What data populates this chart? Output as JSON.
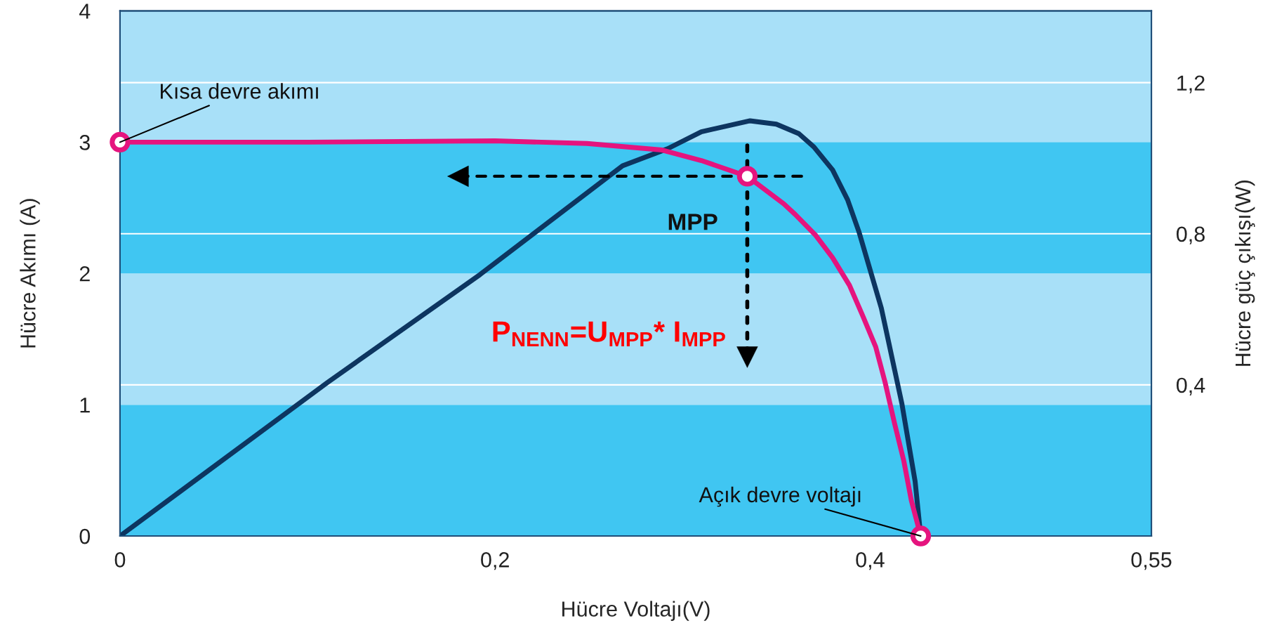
{
  "chart_data": {
    "type": "line",
    "xlabel": "Hücre Voltajı(V)",
    "ylabel": "Hücre Akımı (A)",
    "y2label": "Hücre güç çıkışı(W)",
    "series": [
      {
        "color": "#e5147e",
        "x": [
          0,
          0.1,
          0.2,
          0.249,
          0.289,
          0.31,
          0.3345,
          0.354,
          0.36,
          0.371,
          0.38,
          0.389,
          0.396,
          0.403,
          0.408,
          0.413,
          0.418,
          0.422,
          0.427
        ],
        "values": [
          3.0,
          3.0,
          3.01,
          2.99,
          2.94,
          2.86,
          2.74,
          2.53,
          2.45,
          2.29,
          2.12,
          1.91,
          1.68,
          1.44,
          1.17,
          0.86,
          0.57,
          0.27,
          0
        ]
      },
      {
        "axis": "y2",
        "color": "#0d3560",
        "x": [
          0,
          0.1105,
          0.192,
          0.268,
          0.292,
          0.31,
          0.336,
          0.35,
          0.362,
          0.37,
          0.38,
          0.388,
          0.394,
          0.406,
          0.417,
          0.424,
          0.427
        ],
        "values": [
          0,
          0.406,
          0.692,
          0.98,
          1.025,
          1.07,
          1.099,
          1.09,
          1.065,
          1.03,
          0.969,
          0.89,
          0.806,
          0.603,
          0.349,
          0.145,
          0
        ]
      },
      {
        "type": "scatter",
        "color": "#e5147e",
        "marker": "circle",
        "x": [
          0,
          0.3345,
          0.427
        ],
        "values": [
          3.0,
          2.74,
          0
        ]
      }
    ],
    "xlim": [
      0,
      0.55
    ],
    "xticks": [
      {
        "value": 0,
        "label": "0"
      },
      {
        "value": 0.2,
        "label": "0,2"
      },
      {
        "value": 0.4,
        "label": "0,4"
      },
      {
        "value": 0.55,
        "label": "0,55"
      }
    ],
    "ylim": [
      0,
      4
    ],
    "yticks": [
      0,
      1,
      2,
      3,
      4
    ],
    "y2lim": [
      0,
      1.39
    ],
    "y2ticks": [
      {
        "value": 0.4,
        "label": "0,4"
      },
      {
        "value": 0.8,
        "label": "0,8"
      },
      {
        "value": 1.2,
        "label": "1,2"
      }
    ],
    "bands": [
      {
        "axis": "y",
        "from": 0,
        "to": 1,
        "color": "#40c6f2"
      },
      {
        "axis": "y",
        "from": 1,
        "to": 2,
        "color": "#a8e0f8"
      },
      {
        "axis": "y",
        "from": 2,
        "to": 3,
        "color": "#40c6f2"
      },
      {
        "axis": "y",
        "from": 3,
        "to": 4,
        "color": "#a8e0f8"
      }
    ],
    "ref_lines": [
      {
        "axis": "y2",
        "value": 0.4,
        "color": "#ffffff"
      },
      {
        "axis": "y2",
        "value": 0.8,
        "color": "#ffffff"
      },
      {
        "axis": "y2",
        "value": 1.2,
        "color": "#ffffff"
      }
    ],
    "annotations": [
      {
        "text": "Kısa devre akımı",
        "x": 0,
        "y": 3.0
      },
      {
        "text": "MPP",
        "x": 0.3345,
        "y": 2.74
      },
      {
        "text": "Açık devre voltajı",
        "x": 0.427,
        "y": 0
      },
      "P$_{NENN}$=U$_{MPP}$* I$_{MPP}$"
    ]
  }
}
